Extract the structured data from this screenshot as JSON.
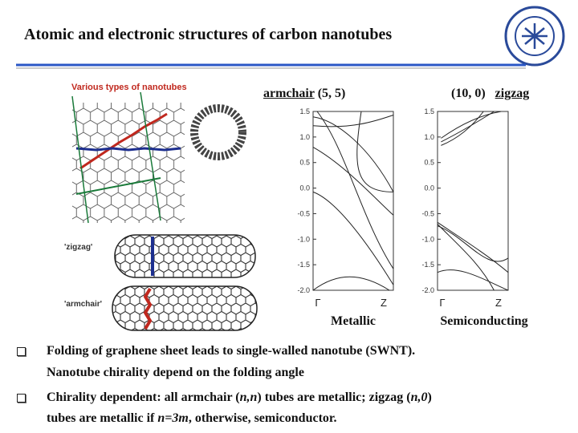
{
  "header": {
    "title": "Atomic and electronic structures of carbon nanotubes"
  },
  "figure": {
    "caption": "Various types of nanotubes",
    "zigzag_label": "'zigzag'",
    "armchair_label": "'armchair'"
  },
  "band_plots": [
    {
      "heading": [
        "armchair",
        "(5, 5)"
      ],
      "yticks": [
        "1.5",
        "1.0",
        "0.5",
        "0.0",
        "-0.5",
        "-1.0",
        "-1.5",
        "-2.0"
      ],
      "xlabels": [
        "Γ",
        "Z"
      ],
      "caption": "Metallic"
    },
    {
      "heading": [
        "(10, 0)",
        "zigzag"
      ],
      "yticks": [
        "1.5",
        "1.0",
        "0.5",
        "0.0",
        "-0.5",
        "-1.0",
        "-1.5",
        "-2.0"
      ],
      "xlabels": [
        "Γ",
        "Z"
      ],
      "caption": "Semiconducting"
    }
  ],
  "bullets": [
    {
      "lines": [
        [
          "Folding of graphene sheet leads to single-walled nanotube (SWNT)."
        ],
        [
          "Nanotube chirality depend on the folding angle"
        ]
      ]
    },
    {
      "lines": [
        [
          "Chirality dependent: all armchair (",
          "n,n",
          ") tubes are metallic; zigzag (",
          "n,0",
          ")"
        ],
        [
          "tubes are metallic if ",
          "n=3m",
          ", otherwise, semiconductor."
        ]
      ]
    }
  ]
}
